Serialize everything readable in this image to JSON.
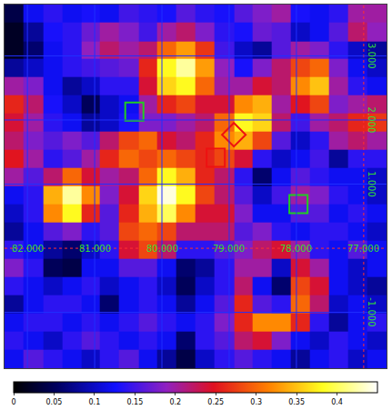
{
  "chart_data": {
    "type": "heatmap",
    "x": [
      82.2,
      81.91,
      81.63,
      81.34,
      81.06,
      80.78,
      80.49,
      80.21,
      79.93,
      79.64,
      79.36,
      79.07,
      78.79,
      78.51,
      78.22,
      77.94,
      77.66,
      77.37,
      77.09,
      76.8
    ],
    "y": [
      3.66,
      3.37,
      3.09,
      2.81,
      2.53,
      2.24,
      1.96,
      1.67,
      1.39,
      1.11,
      0.83,
      0.54,
      0.26,
      -0.03,
      -0.31,
      -0.59,
      -0.87,
      -1.16,
      -1.44,
      -1.73
    ],
    "z": [
      [
        0.04,
        0.12,
        0.14,
        0.12,
        0.13,
        0.12,
        0.15,
        0.14,
        0.13,
        0.16,
        0.14,
        0.13,
        0.16,
        0.18,
        0.2,
        0.13,
        0.12,
        0.14,
        0.2,
        0.2
      ],
      [
        0.02,
        0.08,
        0.13,
        0.14,
        0.17,
        0.2,
        0.18,
        0.15,
        0.2,
        0.22,
        0.18,
        0.14,
        0.13,
        0.17,
        0.16,
        0.1,
        0.12,
        0.16,
        0.22,
        0.19
      ],
      [
        0.02,
        0.06,
        0.12,
        0.14,
        0.19,
        0.22,
        0.2,
        0.22,
        0.3,
        0.33,
        0.27,
        0.15,
        0.1,
        0.08,
        0.16,
        0.2,
        0.18,
        0.14,
        0.1,
        0.08
      ],
      [
        0.08,
        0.1,
        0.12,
        0.14,
        0.15,
        0.16,
        0.17,
        0.26,
        0.38,
        0.42,
        0.33,
        0.19,
        0.13,
        0.18,
        0.22,
        0.28,
        0.3,
        0.18,
        0.12,
        0.1
      ],
      [
        0.2,
        0.18,
        0.12,
        0.08,
        0.1,
        0.14,
        0.14,
        0.24,
        0.36,
        0.38,
        0.3,
        0.2,
        0.2,
        0.24,
        0.22,
        0.32,
        0.35,
        0.2,
        0.14,
        0.12
      ],
      [
        0.26,
        0.22,
        0.13,
        0.1,
        0.05,
        0.1,
        0.12,
        0.2,
        0.26,
        0.28,
        0.24,
        0.24,
        0.32,
        0.34,
        0.2,
        0.25,
        0.28,
        0.18,
        0.2,
        0.22
      ],
      [
        0.24,
        0.2,
        0.14,
        0.12,
        0.08,
        0.1,
        0.13,
        0.18,
        0.18,
        0.2,
        0.22,
        0.3,
        0.38,
        0.36,
        0.22,
        0.15,
        0.2,
        0.22,
        0.26,
        0.27
      ],
      [
        0.22,
        0.18,
        0.16,
        0.18,
        0.16,
        0.22,
        0.28,
        0.3,
        0.24,
        0.22,
        0.26,
        0.32,
        0.34,
        0.28,
        0.16,
        0.1,
        0.14,
        0.2,
        0.22,
        0.2
      ],
      [
        0.25,
        0.2,
        0.14,
        0.16,
        0.2,
        0.26,
        0.3,
        0.28,
        0.3,
        0.28,
        0.26,
        0.28,
        0.24,
        0.14,
        0.1,
        0.12,
        0.15,
        0.08,
        0.14,
        0.14
      ],
      [
        0.2,
        0.16,
        0.22,
        0.3,
        0.24,
        0.2,
        0.22,
        0.3,
        0.38,
        0.34,
        0.26,
        0.22,
        0.14,
        0.06,
        0.12,
        0.16,
        0.14,
        0.12,
        0.12,
        0.1
      ],
      [
        0.12,
        0.14,
        0.34,
        0.42,
        0.32,
        0.18,
        0.24,
        0.36,
        0.44,
        0.38,
        0.28,
        0.22,
        0.16,
        0.1,
        0.15,
        0.2,
        0.18,
        0.14,
        0.12,
        0.1
      ],
      [
        0.1,
        0.14,
        0.32,
        0.38,
        0.26,
        0.16,
        0.26,
        0.34,
        0.4,
        0.32,
        0.24,
        0.24,
        0.18,
        0.12,
        0.12,
        0.16,
        0.16,
        0.12,
        0.14,
        0.12
      ],
      [
        0.08,
        0.12,
        0.16,
        0.18,
        0.14,
        0.16,
        0.28,
        0.3,
        0.28,
        0.22,
        0.22,
        0.22,
        0.16,
        0.18,
        0.14,
        0.12,
        0.14,
        0.14,
        0.12,
        0.1
      ],
      [
        0.14,
        0.12,
        0.08,
        0.06,
        0.1,
        0.14,
        0.24,
        0.28,
        0.22,
        0.14,
        0.14,
        0.16,
        0.18,
        0.22,
        0.24,
        0.2,
        0.14,
        0.12,
        0.16,
        0.12
      ],
      [
        0.18,
        0.14,
        0.05,
        0.04,
        0.12,
        0.12,
        0.16,
        0.16,
        0.12,
        0.06,
        0.08,
        0.14,
        0.2,
        0.2,
        0.1,
        0.24,
        0.2,
        0.12,
        0.1,
        0.12
      ],
      [
        0.14,
        0.12,
        0.1,
        0.12,
        0.14,
        0.1,
        0.12,
        0.14,
        0.1,
        0.05,
        0.1,
        0.14,
        0.22,
        0.12,
        0.06,
        0.28,
        0.24,
        0.12,
        0.1,
        0.08
      ],
      [
        0.08,
        0.12,
        0.14,
        0.14,
        0.12,
        0.06,
        0.12,
        0.14,
        0.12,
        0.08,
        0.12,
        0.16,
        0.26,
        0.16,
        0.14,
        0.3,
        0.22,
        0.1,
        0.12,
        0.1
      ],
      [
        0.12,
        0.14,
        0.14,
        0.12,
        0.14,
        0.12,
        0.14,
        0.16,
        0.14,
        0.12,
        0.14,
        0.18,
        0.26,
        0.32,
        0.32,
        0.26,
        0.14,
        0.08,
        0.12,
        0.14
      ],
      [
        0.14,
        0.12,
        0.1,
        0.14,
        0.16,
        0.14,
        0.12,
        0.14,
        0.12,
        0.06,
        0.14,
        0.16,
        0.22,
        0.24,
        0.18,
        0.12,
        0.1,
        0.14,
        0.12,
        0.1
      ],
      [
        0.12,
        0.16,
        0.14,
        0.12,
        0.1,
        0.14,
        0.16,
        0.12,
        0.08,
        0.04,
        0.1,
        0.14,
        0.16,
        0.14,
        0.12,
        0.08,
        0.12,
        0.14,
        0.1,
        0.12
      ]
    ],
    "xlim": [
      82.34,
      76.66
    ],
    "ylim": [
      -1.87,
      3.8
    ],
    "xticks": [
      {
        "value": 82,
        "label": "82.000"
      },
      {
        "value": 81,
        "label": "81.000"
      },
      {
        "value": 80,
        "label": "80.000"
      },
      {
        "value": 79,
        "label": "79.000"
      },
      {
        "value": 78,
        "label": "78.000"
      },
      {
        "value": 77,
        "label": "77.000"
      }
    ],
    "yticks": [
      {
        "value": -1,
        "label": "-1.000"
      },
      {
        "value": 1,
        "label": "1.000"
      },
      {
        "value": 2,
        "label": "2.000"
      },
      {
        "value": 3,
        "label": "3.000"
      }
    ],
    "grid": true,
    "xtick_row": 0,
    "ytick_column": 77,
    "colorbar": {
      "range": [
        0,
        0.45
      ],
      "ticks": [
        0,
        0.05,
        0.1,
        0.15,
        0.2,
        0.25,
        0.3,
        0.35,
        0.4
      ]
    },
    "regions": [
      {
        "x": 80.41,
        "y": 2.13,
        "color": "#22cc22",
        "marker": "square"
      },
      {
        "x": 77.97,
        "y": 0.69,
        "color": "#22cc22",
        "marker": "square"
      },
      {
        "x": 78.93,
        "y": 1.77,
        "color": "#ee1111",
        "marker": "diamond"
      },
      {
        "x": 79.2,
        "y": 1.41,
        "color": "#ee1111",
        "marker": "square"
      }
    ]
  }
}
